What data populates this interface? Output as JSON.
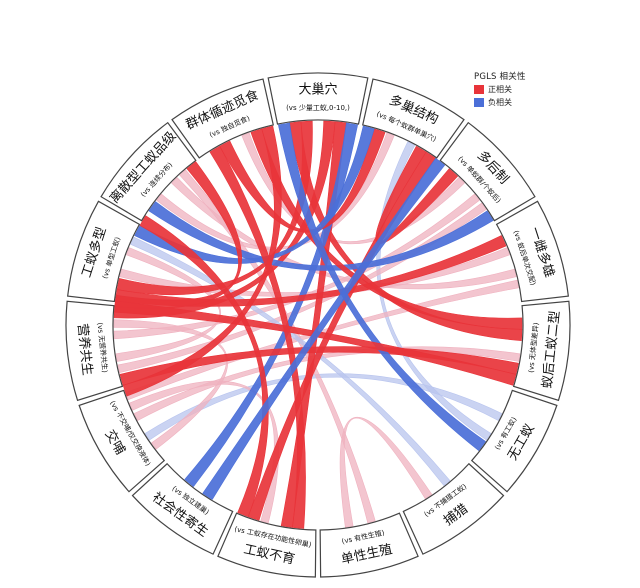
{
  "legend": {
    "title": "PGLS 相关性",
    "positive_label": "正相关",
    "negative_label": "负相关",
    "positive_color": "#e8343a",
    "negative_color": "#4b6fd8"
  },
  "colors": {
    "positive": "#e8343a",
    "positive_light": "#efb1bf",
    "negative": "#4b6fd8",
    "negative_light": "#b8c4ee",
    "border": "#444444"
  },
  "sectors": [
    {
      "id": "large-nest",
      "title": "大巢穴",
      "subtitle": "(vs 少量工蚁,0-10,)"
    },
    {
      "id": "polydomy",
      "title": "多巢结构",
      "subtitle": "(vs 每个蚁群单巢穴)"
    },
    {
      "id": "polygyny",
      "title": "多后制",
      "subtitle": "(vs 单蚁群/个蚁后)"
    },
    {
      "id": "polyandry",
      "title": "一雌多雄",
      "subtitle": "(vs 蚁后单次交配)"
    },
    {
      "id": "queen-worker-dimorphism",
      "title": "蚁后工蚁二型",
      "subtitle": "(vs 无体型差异)"
    },
    {
      "id": "worker-sterility",
      "title": "无工蚁",
      "subtitle": "(vs 有工蚁)"
    },
    {
      "id": "hunting",
      "title": "捕猎",
      "subtitle": "(vs 不捕猎工蚁)"
    },
    {
      "id": "solitary",
      "title": "单性生殖",
      "subtitle": "(vs 有性生殖)"
    },
    {
      "id": "sterile-workers",
      "title": "工蚁不育",
      "subtitle": "(vs 工蚁存在功能性卵巢)"
    },
    {
      "id": "social-parasitism",
      "title": "社会性寄生",
      "subtitle": "(vs 独立建巢)"
    },
    {
      "id": "trophallaxis",
      "title": "交哺",
      "subtitle": "(vs 不交哺/仅交换液体)"
    },
    {
      "id": "mutualism",
      "title": "营养共生",
      "subtitle": "(vs 无营养共生)"
    },
    {
      "id": "worker-polymorphism",
      "title": "工蚁多型",
      "subtitle": "(vs 单型工蚁)"
    },
    {
      "id": "discrete-castes",
      "title": "离散型工蚁品级",
      "subtitle": "(vs 连续分布)"
    },
    {
      "id": "group-foraging",
      "title": "群体循迹觅食",
      "subtitle": "(vs 独自觅食)"
    }
  ],
  "chords": [
    {
      "from": "large-nest",
      "to": "mutualism",
      "sign": "positive",
      "strength": "strong"
    },
    {
      "from": "large-nest",
      "to": "worker-polymorphism",
      "sign": "positive",
      "strength": "strong"
    },
    {
      "from": "large-nest",
      "to": "sterile-workers",
      "sign": "positive",
      "strength": "strong"
    },
    {
      "from": "large-nest",
      "to": "queen-worker-dimorphism",
      "sign": "positive",
      "strength": "strong"
    },
    {
      "from": "large-nest",
      "to": "social-parasitism",
      "sign": "negative",
      "strength": "strong"
    },
    {
      "from": "polydomy",
      "to": "polygyny",
      "sign": "positive",
      "strength": "strong"
    },
    {
      "from": "polydomy",
      "to": "group-foraging",
      "sign": "positive",
      "strength": "strong"
    },
    {
      "from": "polydomy",
      "to": "sterile-workers",
      "sign": "positive",
      "strength": "strong"
    },
    {
      "from": "polydomy",
      "to": "worker-polymorphism",
      "sign": "negative",
      "strength": "strong"
    },
    {
      "from": "polygyny",
      "to": "discrete-castes",
      "sign": "negative",
      "strength": "strong"
    },
    {
      "from": "polygyny",
      "to": "mutualism",
      "sign": "positive",
      "strength": "weak"
    },
    {
      "from": "polyandry",
      "to": "worker-polymorphism",
      "sign": "positive",
      "strength": "strong"
    },
    {
      "from": "polyandry",
      "to": "discrete-castes",
      "sign": "positive",
      "strength": "weak"
    },
    {
      "from": "queen-worker-dimorphism",
      "to": "mutualism",
      "sign": "positive",
      "strength": "strong"
    },
    {
      "from": "queen-worker-dimorphism",
      "to": "trophallaxis",
      "sign": "positive",
      "strength": "weak"
    },
    {
      "from": "queen-worker-dimorphism",
      "to": "group-foraging",
      "sign": "positive",
      "strength": "strong"
    },
    {
      "from": "worker-sterility",
      "to": "polydomy",
      "sign": "negative",
      "strength": "weak"
    },
    {
      "from": "worker-sterility",
      "to": "trophallaxis",
      "sign": "negative",
      "strength": "weak"
    },
    {
      "from": "worker-sterility",
      "to": "large-nest",
      "sign": "negative",
      "strength": "strong"
    },
    {
      "from": "hunting",
      "to": "solitary",
      "sign": "positive",
      "strength": "weak"
    },
    {
      "from": "sterile-workers",
      "to": "group-foraging",
      "sign": "positive",
      "strength": "strong"
    },
    {
      "from": "sterile-workers",
      "to": "trophallaxis",
      "sign": "positive",
      "strength": "weak"
    },
    {
      "from": "sterile-workers",
      "to": "worker-polymorphism",
      "sign": "positive",
      "strength": "strong"
    },
    {
      "from": "mutualism",
      "to": "worker-polymorphism",
      "sign": "positive",
      "strength": "weak"
    },
    {
      "from": "mutualism",
      "to": "trophallaxis",
      "sign": "positive",
      "strength": "weak"
    },
    {
      "from": "discrete-castes",
      "to": "mutualism",
      "sign": "positive",
      "strength": "strong"
    },
    {
      "from": "discrete-castes",
      "to": "polydomy",
      "sign": "positive",
      "strength": "weak"
    },
    {
      "from": "group-foraging",
      "to": "mutualism",
      "sign": "positive",
      "strength": "strong"
    },
    {
      "from": "group-foraging",
      "to": "polygyny",
      "sign": "positive",
      "strength": "weak"
    },
    {
      "from": "worker-polymorphism",
      "to": "polyandry",
      "sign": "positive",
      "strength": "weak"
    },
    {
      "from": "worker-polymorphism",
      "to": "queen-worker-dimorphism",
      "sign": "positive",
      "strength": "strong"
    },
    {
      "from": "social-parasitism",
      "to": "polydomy",
      "sign": "negative",
      "strength": "strong"
    },
    {
      "from": "trophallaxis",
      "to": "polyandry",
      "sign": "positive",
      "strength": "weak"
    },
    {
      "from": "mutualism",
      "to": "polygyny",
      "sign": "positive",
      "strength": "weak"
    },
    {
      "from": "solitary",
      "to": "discrete-castes",
      "sign": "positive",
      "strength": "weak"
    },
    {
      "from": "hunting",
      "to": "worker-polymorphism",
      "sign": "negative",
      "strength": "weak"
    }
  ]
}
